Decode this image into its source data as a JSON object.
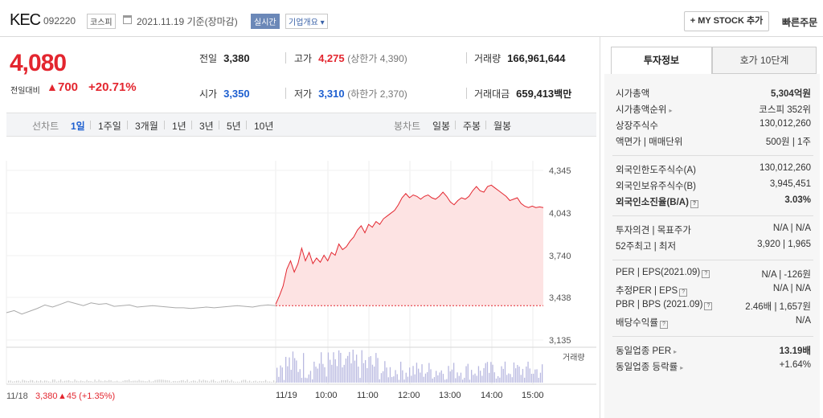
{
  "header": {
    "name": "KEC",
    "code": "092220",
    "market": "코스피",
    "date": "2021.11.19 기준(장마감)",
    "realtime": "실시간",
    "company_overview": "기업개요 ▾",
    "mystock": "+ MY STOCK 추가",
    "quick_order": "빠른주문"
  },
  "price": {
    "current": "4,080",
    "change_label": "전일대비",
    "change_arrow": "▲",
    "change": "700",
    "rate": "+20.71%"
  },
  "stats": {
    "prev_label": "전일",
    "prev": "3,380",
    "high_label": "고가",
    "high": "4,275",
    "upper_limit": "(상한가 4,390)",
    "volume_label": "거래량",
    "volume": "166,961,644",
    "open_label": "시가",
    "open": "3,350",
    "low_label": "저가",
    "low": "3,310",
    "lower_limit": "(하한가 2,370)",
    "amount_label": "거래대금",
    "amount": "659,413",
    "amount_unit": "백만"
  },
  "period_bar": {
    "line_label": "선차트",
    "line_periods": [
      "1일",
      "1주일",
      "3개월",
      "1년",
      "3년",
      "5년",
      "10년"
    ],
    "candle_label": "봉차트",
    "candle_periods": [
      "일봉",
      "주봉",
      "월봉"
    ]
  },
  "chart_data": {
    "type": "line",
    "y_ticks": [
      "4,345",
      "4,043",
      "3,740",
      "3,438",
      "3,135"
    ],
    "x_ticks": [
      "11/18",
      "11/19",
      "10:00",
      "11:00",
      "12:00",
      "13:00",
      "14:00",
      "15:00"
    ],
    "ylim": [
      3135,
      4345
    ],
    "reference_price": 3380,
    "volume_label": "거래량",
    "prev_day_series": [
      3330,
      3345,
      3320,
      3340,
      3360,
      3385,
      3370,
      3390,
      3410,
      3395,
      3380,
      3400,
      3390,
      3395,
      3375,
      3380,
      3385,
      3370,
      3375,
      3380,
      3375,
      3370,
      3365,
      3365,
      3360,
      3365,
      3370,
      3365,
      3370,
      3375,
      3380,
      3375,
      3370,
      3380,
      3385,
      3380
    ],
    "today_series": [
      3390,
      3450,
      3520,
      3640,
      3700,
      3620,
      3680,
      3790,
      3700,
      3760,
      3680,
      3720,
      3690,
      3740,
      3700,
      3760,
      3740,
      3820,
      3780,
      3800,
      3840,
      3870,
      3920,
      3950,
      3900,
      3960,
      3940,
      3980,
      3960,
      4000,
      4020,
      4040,
      4060,
      4100,
      4150,
      4180,
      4150,
      4170,
      4160,
      4140,
      4160,
      4170,
      4150,
      4140,
      4160,
      4190,
      4160,
      4120,
      4100,
      4130,
      4150,
      4140,
      4160,
      4200,
      4230,
      4200,
      4190,
      4230,
      4240,
      4220,
      4200,
      4180,
      4160,
      4130,
      4140,
      4150,
      4110,
      4090,
      4080,
      4090,
      4080,
      4085,
      4080
    ]
  },
  "bottom": {
    "date": "11/18",
    "price": "3,380",
    "change": "▲45 (+1.35%)"
  },
  "tabs": {
    "invest": "투자정보",
    "orderbook": "호가 10단계"
  },
  "info": {
    "market_cap_label": "시가총액",
    "market_cap": "5,304억원",
    "market_cap_rank_label": "시가총액순위",
    "market_cap_rank": "코스피 352위",
    "shares_label": "상장주식수",
    "shares": "130,012,260",
    "face_label": "액면가 | 매매단위",
    "face": "500원 | 1주",
    "foreign_limit_label": "외국인한도주식수(A)",
    "foreign_limit": "130,012,260",
    "foreign_hold_label": "외국인보유주식수(B)",
    "foreign_hold": "3,945,451",
    "foreign_rate_label": "외국인소진율(B/A)",
    "foreign_rate": "3.03%",
    "opinion_label": "투자의견 | 목표주가",
    "opinion": "N/A | N/A",
    "week52_label": "52주최고 | 최저",
    "week52": "3,920 | 1,965",
    "per_label": "PER | EPS(2021.09)",
    "per": "N/A | -126원",
    "est_per_label": "추정PER | EPS",
    "est_per": "N/A | N/A",
    "pbr_label": "PBR | BPS (2021.09)",
    "pbr": "2.46배 | 1,657원",
    "dividend_label": "배당수익률",
    "dividend": "N/A",
    "industry_per_label": "동일업종 PER",
    "industry_per": "13.19배",
    "industry_rate_label": "동일업종 등락률",
    "industry_rate": "+1.64%"
  },
  "colors": {
    "up": "#e3262f",
    "down": "#1d5fd0",
    "line_prev": "#aaaaaa",
    "fill_today": "#fde3e3"
  }
}
